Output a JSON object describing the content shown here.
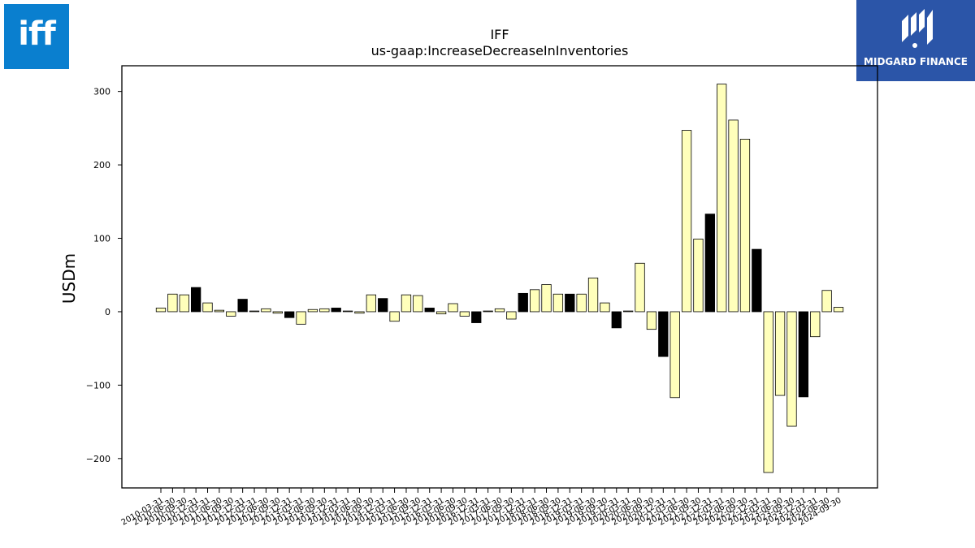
{
  "logos": {
    "left_text": "iff",
    "right_text": "MIDGARD FINANCE"
  },
  "colors": {
    "bar_light": "#ffffbb",
    "bar_dark": "#000000",
    "iff_blue": "#0a7fcf",
    "midgard_blue": "#2b55a8"
  },
  "chart_data": {
    "type": "bar",
    "title": "IFF",
    "subtitle": "us-gaap:IncreaseDecreaseInInventories",
    "xlabel": "",
    "ylabel": "USDm",
    "ylim": [
      -240,
      335
    ],
    "yticks": [
      -200,
      -100,
      0,
      100,
      200,
      300
    ],
    "grid": false,
    "categories": [
      "2010-03-31",
      "2010-06-30",
      "2010-09-30",
      "2010-12-31",
      "2011-03-31",
      "2011-06-30",
      "2011-09-30",
      "2011-12-31",
      "2012-03-31",
      "2012-06-30",
      "2012-09-30",
      "2012-12-31",
      "2013-03-31",
      "2013-06-30",
      "2013-09-30",
      "2013-12-31",
      "2014-03-31",
      "2014-06-30",
      "2014-09-30",
      "2014-12-31",
      "2015-03-31",
      "2015-06-30",
      "2015-09-30",
      "2015-12-31",
      "2016-03-31",
      "2016-06-30",
      "2016-09-30",
      "2016-12-31",
      "2017-03-31",
      "2017-06-30",
      "2017-09-30",
      "2017-12-31",
      "2018-03-31",
      "2018-06-30",
      "2018-09-30",
      "2018-12-31",
      "2019-03-31",
      "2019-06-30",
      "2019-09-30",
      "2019-12-31",
      "2020-03-31",
      "2020-06-30",
      "2020-09-30",
      "2020-12-31",
      "2021-03-31",
      "2021-06-30",
      "2021-09-30",
      "2021-12-31",
      "2022-03-31",
      "2022-06-30",
      "2022-09-30",
      "2022-12-31",
      "2023-03-31",
      "2023-06-30",
      "2023-09-30",
      "2023-12-31",
      "2024-03-31",
      "2024-06-30",
      "2024-09-30"
    ],
    "values": [
      5,
      24,
      23,
      33,
      12,
      2,
      -6,
      17,
      1,
      4,
      -2,
      -8,
      -17,
      3,
      4,
      5,
      1,
      -2,
      23,
      18,
      -13,
      23,
      22,
      5,
      -3,
      11,
      -6,
      -15,
      1,
      4,
      -10,
      25,
      30,
      37,
      24,
      24,
      24,
      46,
      12,
      -22,
      1,
      66,
      -24,
      -61,
      -117,
      247,
      99,
      133,
      310,
      261,
      235,
      85,
      -219,
      -114,
      -156,
      -116,
      -34,
      29,
      6
    ],
    "dark_bars": [
      3,
      7,
      11,
      15,
      19,
      23,
      27,
      31,
      35,
      39,
      43,
      47,
      51,
      55
    ]
  }
}
